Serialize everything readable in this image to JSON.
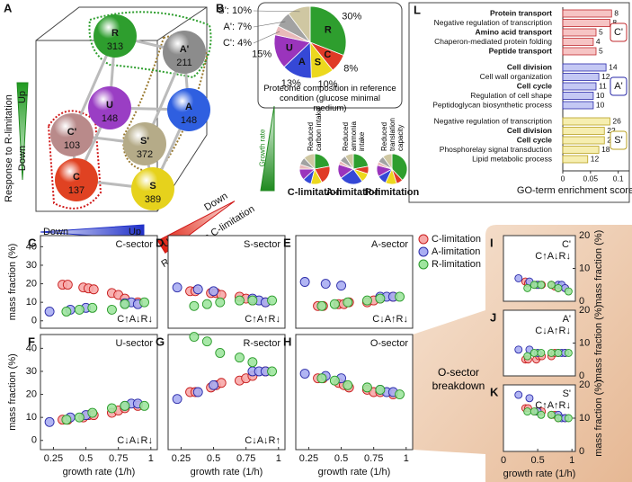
{
  "diagram": {
    "panel": "A",
    "nodes": [
      {
        "label": "R",
        "count": 313,
        "color": "#2e9e2e"
      },
      {
        "label": "A'",
        "count": 211,
        "color": "#8c8c8c"
      },
      {
        "label": "C'",
        "count": 103,
        "color": "#b98a8a"
      },
      {
        "label": "S'",
        "count": 372,
        "color": "#b5ab88"
      },
      {
        "label": "U",
        "count": 148,
        "color": "#9a3ec4"
      },
      {
        "label": "A",
        "count": 148,
        "color": "#2f5fe0"
      },
      {
        "label": "C",
        "count": 137,
        "color": "#e04222"
      },
      {
        "label": "S",
        "count": 389,
        "color": "#e6d21c"
      }
    ],
    "r_axis": "Response to R-limitation",
    "a_axis": "Response to A-limitation",
    "c_axis": "Response to C-limitation",
    "up": "Up",
    "down": "Down"
  },
  "growth_label": "Growth rate",
  "breakdown_label": "O-sector breakdown",
  "chart_data": [
    {
      "type": "pie",
      "panel": "B",
      "caption": "Proteome composition in reference condition (glucose minimal medium)",
      "categories": [
        "R",
        "C",
        "S",
        "A",
        "U",
        null,
        null,
        null
      ],
      "values": [
        30,
        8,
        10,
        13,
        15,
        4,
        7,
        10
      ],
      "value_labels": [
        "30%",
        "8%",
        "10%",
        "13%",
        "15%",
        "C': 4%",
        "A': 7%",
        "S': 10%"
      ],
      "colors": [
        "#2e9e2e",
        "#e03a26",
        "#ecd81e",
        "#3548d6",
        "#9a34bc",
        "#e9b9b9",
        "#a2a2a2",
        "#cfc7a2"
      ]
    },
    {
      "type": "pie",
      "title": "Reduced carbon intake",
      "label": "C-limitation",
      "label_color": "#d01818",
      "values": [
        22,
        20,
        12,
        9,
        12,
        5,
        8,
        12
      ],
      "colors": [
        "#2e9e2e",
        "#e03a26",
        "#ecd81e",
        "#3548d6",
        "#9a34bc",
        "#e9b9b9",
        "#a2a2a2",
        "#cfc7a2"
      ]
    },
    {
      "type": "pie",
      "title": "Reduced ammonia intake",
      "label": "A-limitation",
      "label_color": "#2020b0",
      "values": [
        22,
        8,
        10,
        25,
        15,
        4,
        7,
        9
      ],
      "colors": [
        "#2e9e2e",
        "#e03a26",
        "#ecd81e",
        "#3548d6",
        "#9a34bc",
        "#e9b9b9",
        "#a2a2a2",
        "#cfc7a2"
      ]
    },
    {
      "type": "pie",
      "title": "Reduced translation capacity",
      "label": "R-limitation",
      "label_color": "#1a8a1a",
      "values": [
        38,
        7,
        12,
        10,
        12,
        4,
        7,
        10
      ],
      "colors": [
        "#2e9e2e",
        "#e03a26",
        "#ecd81e",
        "#3548d6",
        "#9a34bc",
        "#e9b9b9",
        "#a2a2a2",
        "#cfc7a2"
      ]
    },
    {
      "type": "hbar",
      "panel": "L",
      "xlabel": "GO-term enrichment score",
      "xlim": [
        0,
        0.12
      ],
      "xticks": [
        0,
        0.05,
        0.1
      ],
      "groups": [
        {
          "name": "C'",
          "color": "#f6c4c4",
          "edge": "#c0282d",
          "categories": [
            "Protein transport",
            "Negative regulation of transcription",
            "Amino acid transport",
            "Chaperon-mediated protein folding",
            "Peptide transport"
          ],
          "values": [
            0.088,
            0.085,
            0.06,
            0.055,
            0.06
          ],
          "counts": [
            8,
            8,
            5,
            4,
            5
          ],
          "bold": [
            true,
            false,
            true,
            false,
            true
          ]
        },
        {
          "name": "A'",
          "color": "#c4c8f4",
          "edge": "#2a2aa8",
          "categories": [
            "Cell division",
            "Cell wall organization",
            "Cell cycle",
            "Regulation of cell shape",
            "Peptidoglycan biosynthetic process"
          ],
          "values": [
            0.078,
            0.065,
            0.06,
            0.055,
            0.055
          ],
          "counts": [
            14,
            12,
            11,
            10,
            10
          ],
          "bold": [
            true,
            false,
            true,
            false,
            false
          ]
        },
        {
          "name": "S'",
          "color": "#f6eeb0",
          "edge": "#b8a020",
          "categories": [
            "Negative regulation of transcription",
            "Cell division",
            "Cell cycle",
            "Phosphorelay signal transduction",
            "Lipid metabolic process"
          ],
          "values": [
            0.085,
            0.075,
            0.075,
            0.065,
            0.045
          ],
          "counts": [
            26,
            22,
            20,
            18,
            12
          ],
          "bold": [
            false,
            true,
            true,
            false,
            false
          ]
        }
      ]
    },
    {
      "type": "scatter",
      "panel": "C",
      "title": "C-sector",
      "annotation": "C↑A↓R↓",
      "ylabel": "mass fraction (%)",
      "xlim": [
        0.15,
        1.05
      ],
      "ylim": [
        -4,
        46
      ],
      "yticks": [
        0,
        10,
        20,
        30,
        40
      ],
      "legend": "top-right",
      "series": [
        {
          "name": "C-limitation",
          "color": "#f7a8a8",
          "edge": "#c81e1e",
          "x": [
            0.32,
            0.36,
            0.48,
            0.52,
            0.56,
            0.7,
            0.75,
            0.8,
            0.9
          ],
          "values": [
            19.5,
            19.5,
            18,
            17.5,
            17,
            15,
            14,
            12,
            10
          ]
        },
        {
          "name": "A-limitation",
          "color": "#a9adf2",
          "edge": "#2a2aa8",
          "x": [
            0.22,
            0.38,
            0.5,
            0.8,
            0.85,
            0.9
          ],
          "values": [
            5,
            6,
            7,
            9.5,
            10,
            9
          ]
        },
        {
          "name": "R-limitation",
          "color": "#9fe59f",
          "edge": "#2a9a2a",
          "x": [
            0.35,
            0.45,
            0.55,
            0.7,
            0.8,
            0.95
          ],
          "values": [
            5,
            6,
            7,
            6,
            9,
            10
          ]
        }
      ]
    },
    {
      "type": "scatter",
      "panel": "D",
      "title": "S-sector",
      "annotation": "C↑A↑R↓",
      "xlim": [
        0.15,
        1.05
      ],
      "ylim": [
        -4,
        46
      ],
      "series": [
        {
          "name": "C-limitation",
          "color": "#f7a8a8",
          "edge": "#c81e1e",
          "x": [
            0.32,
            0.36,
            0.48,
            0.52,
            0.56,
            0.7,
            0.75,
            0.8,
            0.9
          ],
          "values": [
            16,
            16,
            15,
            15,
            14,
            13,
            12,
            11,
            10
          ]
        },
        {
          "name": "A-limitation",
          "color": "#a9adf2",
          "edge": "#2a2aa8",
          "x": [
            0.22,
            0.38,
            0.5,
            0.8,
            0.85,
            0.9
          ],
          "values": [
            18,
            17,
            16,
            12,
            11,
            10
          ]
        },
        {
          "name": "R-limitation",
          "color": "#9fe59f",
          "edge": "#2a9a2a",
          "x": [
            0.35,
            0.45,
            0.55,
            0.7,
            0.8,
            0.95
          ],
          "values": [
            8,
            9,
            10,
            11,
            11,
            11
          ]
        }
      ]
    },
    {
      "type": "scatter",
      "panel": "E",
      "title": "A-sector",
      "annotation": "C↓A↑R↓",
      "xlim": [
        0.15,
        1.05
      ],
      "ylim": [
        -4,
        46
      ],
      "series": [
        {
          "name": "C-limitation",
          "color": "#f7a8a8",
          "edge": "#c81e1e",
          "x": [
            0.32,
            0.36,
            0.48,
            0.52,
            0.56,
            0.7,
            0.75,
            0.8,
            0.9
          ],
          "values": [
            8,
            8,
            9,
            9,
            10,
            10,
            11,
            12,
            13
          ]
        },
        {
          "name": "A-limitation",
          "color": "#a9adf2",
          "edge": "#2a2aa8",
          "x": [
            0.22,
            0.38,
            0.5,
            0.8,
            0.85,
            0.9
          ],
          "values": [
            21,
            20,
            19,
            13,
            13,
            13
          ]
        },
        {
          "name": "R-limitation",
          "color": "#9fe59f",
          "edge": "#2a9a2a",
          "x": [
            0.35,
            0.45,
            0.55,
            0.7,
            0.8,
            0.95
          ],
          "values": [
            8,
            9,
            10,
            11,
            12,
            13
          ]
        }
      ]
    },
    {
      "type": "scatter",
      "panel": "F",
      "title": "U-sector",
      "annotation": "C↓A↓R↓",
      "ylabel": "mass fraction (%)",
      "xlabel": "growth rate (1/h)",
      "xlim": [
        0.15,
        1.05
      ],
      "xticks": [
        0.25,
        0.5,
        0.75,
        1
      ],
      "ylim": [
        -4,
        46
      ],
      "yticks": [
        0,
        10,
        20,
        30,
        40
      ],
      "series": [
        {
          "name": "C-limitation",
          "color": "#f7a8a8",
          "edge": "#c81e1e",
          "x": [
            0.32,
            0.36,
            0.48,
            0.52,
            0.56,
            0.7,
            0.75,
            0.8,
            0.9
          ],
          "values": [
            9,
            9,
            10,
            11,
            11,
            12,
            13,
            14,
            15
          ]
        },
        {
          "name": "A-limitation",
          "color": "#a9adf2",
          "edge": "#2a2aa8",
          "x": [
            0.22,
            0.38,
            0.5,
            0.8,
            0.85,
            0.9
          ],
          "values": [
            8,
            10,
            11,
            15,
            16,
            16
          ]
        },
        {
          "name": "R-limitation",
          "color": "#9fe59f",
          "edge": "#2a9a2a",
          "x": [
            0.35,
            0.45,
            0.55,
            0.7,
            0.8,
            0.95
          ],
          "values": [
            9,
            10,
            12,
            14,
            15,
            15
          ]
        }
      ]
    },
    {
      "type": "scatter",
      "panel": "G",
      "title": "R-sector",
      "annotation": "C↓A↓R↑",
      "xlabel": "growth rate (1/h)",
      "xlim": [
        0.15,
        1.05
      ],
      "xticks": [
        0.25,
        0.5,
        0.75,
        1
      ],
      "ylim": [
        -4,
        46
      ],
      "series": [
        {
          "name": "C-limitation",
          "color": "#f7a8a8",
          "edge": "#c81e1e",
          "x": [
            0.32,
            0.36,
            0.48,
            0.52,
            0.56,
            0.7,
            0.75,
            0.8,
            0.9
          ],
          "values": [
            21,
            21,
            23,
            24,
            25,
            26,
            27,
            28,
            30
          ]
        },
        {
          "name": "A-limitation",
          "color": "#a9adf2",
          "edge": "#2a2aa8",
          "x": [
            0.22,
            0.38,
            0.5,
            0.8,
            0.85,
            0.9
          ],
          "values": [
            18,
            21,
            24,
            30,
            30,
            30
          ]
        },
        {
          "name": "R-limitation",
          "color": "#9fe59f",
          "edge": "#2a9a2a",
          "x": [
            0.35,
            0.45,
            0.55,
            0.7,
            0.8,
            0.95
          ],
          "values": [
            45,
            43,
            38,
            36,
            34,
            30
          ]
        }
      ]
    },
    {
      "type": "scatter",
      "panel": "H",
      "title": "O-sector",
      "xlabel": "growth rate (1/h)",
      "xlim": [
        0.15,
        1.05
      ],
      "xticks": [
        0.25,
        0.5,
        0.75,
        1
      ],
      "ylim": [
        -4,
        46
      ],
      "series": [
        {
          "name": "C-limitation",
          "color": "#f7a8a8",
          "edge": "#c81e1e",
          "x": [
            0.32,
            0.36,
            0.48,
            0.52,
            0.56,
            0.7,
            0.75,
            0.8,
            0.9
          ],
          "values": [
            27,
            27,
            25,
            24,
            23,
            22,
            21,
            21,
            20
          ]
        },
        {
          "name": "A-limitation",
          "color": "#a9adf2",
          "edge": "#2a2aa8",
          "x": [
            0.22,
            0.38,
            0.5,
            0.8,
            0.85,
            0.9
          ],
          "values": [
            29,
            28,
            27,
            22,
            21,
            21
          ]
        },
        {
          "name": "R-limitation",
          "color": "#9fe59f",
          "edge": "#2a9a2a",
          "x": [
            0.35,
            0.45,
            0.55,
            0.7,
            0.8,
            0.95
          ],
          "values": [
            27,
            26,
            24,
            23,
            22,
            20
          ]
        }
      ]
    },
    {
      "type": "scatter",
      "panel": "I",
      "title": "C'",
      "annotation": "C↑A↓R↓",
      "yaxis": "right",
      "ylabel": "mass fraction (%)",
      "xlim": [
        0,
        1.05
      ],
      "ylim": [
        0,
        20
      ],
      "yticks": [
        0,
        10,
        20
      ],
      "series": [
        {
          "name": "C-limitation",
          "color": "#f7a8a8",
          "edge": "#c81e1e",
          "x": [
            0.32,
            0.36,
            0.48,
            0.52,
            0.56,
            0.7,
            0.75,
            0.8,
            0.9
          ],
          "values": [
            6,
            5.5,
            5,
            5,
            5,
            5,
            4.5,
            4,
            4
          ]
        },
        {
          "name": "A-limitation",
          "color": "#a9adf2",
          "edge": "#2a2aa8",
          "x": [
            0.22,
            0.38,
            0.5,
            0.8,
            0.85,
            0.9
          ],
          "values": [
            7,
            6,
            5,
            5,
            5,
            4
          ]
        },
        {
          "name": "R-limitation",
          "color": "#9fe59f",
          "edge": "#2a9a2a",
          "x": [
            0.35,
            0.45,
            0.55,
            0.7,
            0.8,
            0.95
          ],
          "values": [
            4,
            5,
            5,
            5,
            4,
            3
          ]
        }
      ]
    },
    {
      "type": "scatter",
      "panel": "J",
      "title": "A'",
      "annotation": "C↓A↑R↓",
      "yaxis": "right",
      "ylabel": "mass fraction (%)",
      "xlim": [
        0,
        1.05
      ],
      "ylim": [
        0,
        20
      ],
      "yticks": [
        0,
        10,
        20
      ],
      "series": [
        {
          "name": "C-limitation",
          "color": "#f7a8a8",
          "edge": "#c81e1e",
          "x": [
            0.32,
            0.36,
            0.48,
            0.52,
            0.56,
            0.7,
            0.75,
            0.8,
            0.9
          ],
          "values": [
            5,
            5,
            5,
            6,
            6,
            6,
            7,
            7,
            7
          ]
        },
        {
          "name": "A-limitation",
          "color": "#a9adf2",
          "edge": "#2a2aa8",
          "x": [
            0.22,
            0.38,
            0.5,
            0.8,
            0.85,
            0.9
          ],
          "values": [
            8,
            8,
            7,
            7,
            7,
            7
          ]
        },
        {
          "name": "R-limitation",
          "color": "#9fe59f",
          "edge": "#2a9a2a",
          "x": [
            0.35,
            0.45,
            0.55,
            0.7,
            0.8,
            0.95
          ],
          "values": [
            6,
            7,
            7,
            7,
            7,
            7
          ]
        }
      ]
    },
    {
      "type": "scatter",
      "panel": "K",
      "title": "S'",
      "annotation": "C↑A↑R↓",
      "yaxis": "right",
      "ylabel": "mass fraction (%)",
      "xlabel": "growth rate (1/h)",
      "xlim": [
        0,
        1.05
      ],
      "xticks": [
        0,
        0.5,
        1
      ],
      "ylim": [
        0,
        20
      ],
      "yticks": [
        0,
        10,
        20
      ],
      "series": [
        {
          "name": "C-limitation",
          "color": "#f7a8a8",
          "edge": "#c81e1e",
          "x": [
            0.32,
            0.36,
            0.48,
            0.52,
            0.56,
            0.7,
            0.75,
            0.8,
            0.9
          ],
          "values": [
            13,
            13,
            12,
            12,
            12,
            11,
            11,
            10,
            10
          ]
        },
        {
          "name": "A-limitation",
          "color": "#a9adf2",
          "edge": "#2a2aa8",
          "x": [
            0.22,
            0.38,
            0.5,
            0.8,
            0.85,
            0.9
          ],
          "values": [
            17,
            16,
            12,
            11,
            10,
            10
          ]
        },
        {
          "name": "R-limitation",
          "color": "#9fe59f",
          "edge": "#2a9a2a",
          "x": [
            0.35,
            0.45,
            0.55,
            0.7,
            0.8,
            0.95
          ],
          "values": [
            12,
            12,
            11,
            11,
            10,
            10
          ]
        }
      ]
    }
  ]
}
